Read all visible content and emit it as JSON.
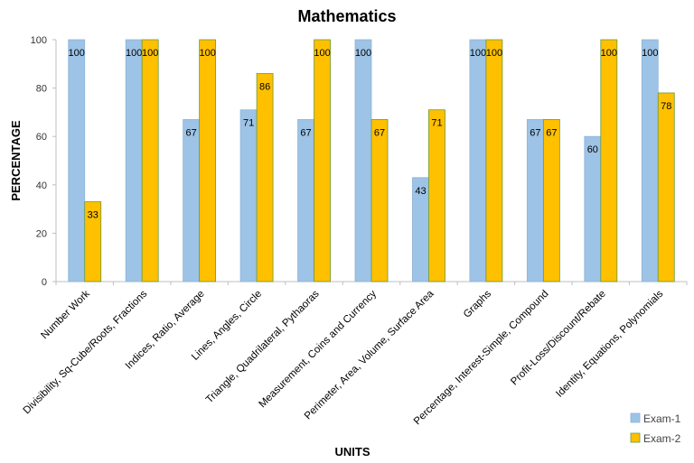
{
  "chart_data": {
    "type": "bar",
    "title": "Mathematics",
    "xlabel": "UNITS",
    "ylabel": "PERCENTAGE",
    "ylim": [
      0,
      100
    ],
    "yticks": [
      0,
      20,
      40,
      60,
      80,
      100
    ],
    "grid": false,
    "legend_position": "bottom-right",
    "categories": [
      "Number Work",
      "Divisibility, Sq-Cube/Roots, Fractions",
      "Indices, Ratio, Average",
      "Lines, Angles, Circle",
      "Triangle, Quadrilateral, Pythaoras",
      "Measurement,  Coins and Currency",
      "Perimeter, Area, Volume, Surface Area",
      "Graphs",
      "Percentage, Interest-Simple, Compound",
      "Profit-Loss/Discount/Rebate",
      "Identity, Equations, Polynomials"
    ],
    "series": [
      {
        "name": "Exam-1",
        "color": "#9DC3E6",
        "values": [
          100,
          100,
          67,
          71,
          67,
          100,
          43,
          100,
          67,
          60,
          100
        ]
      },
      {
        "name": "Exam-2",
        "color": "#FFC000",
        "values": [
          33,
          100,
          100,
          86,
          100,
          67,
          71,
          100,
          67,
          100,
          78
        ]
      }
    ]
  }
}
